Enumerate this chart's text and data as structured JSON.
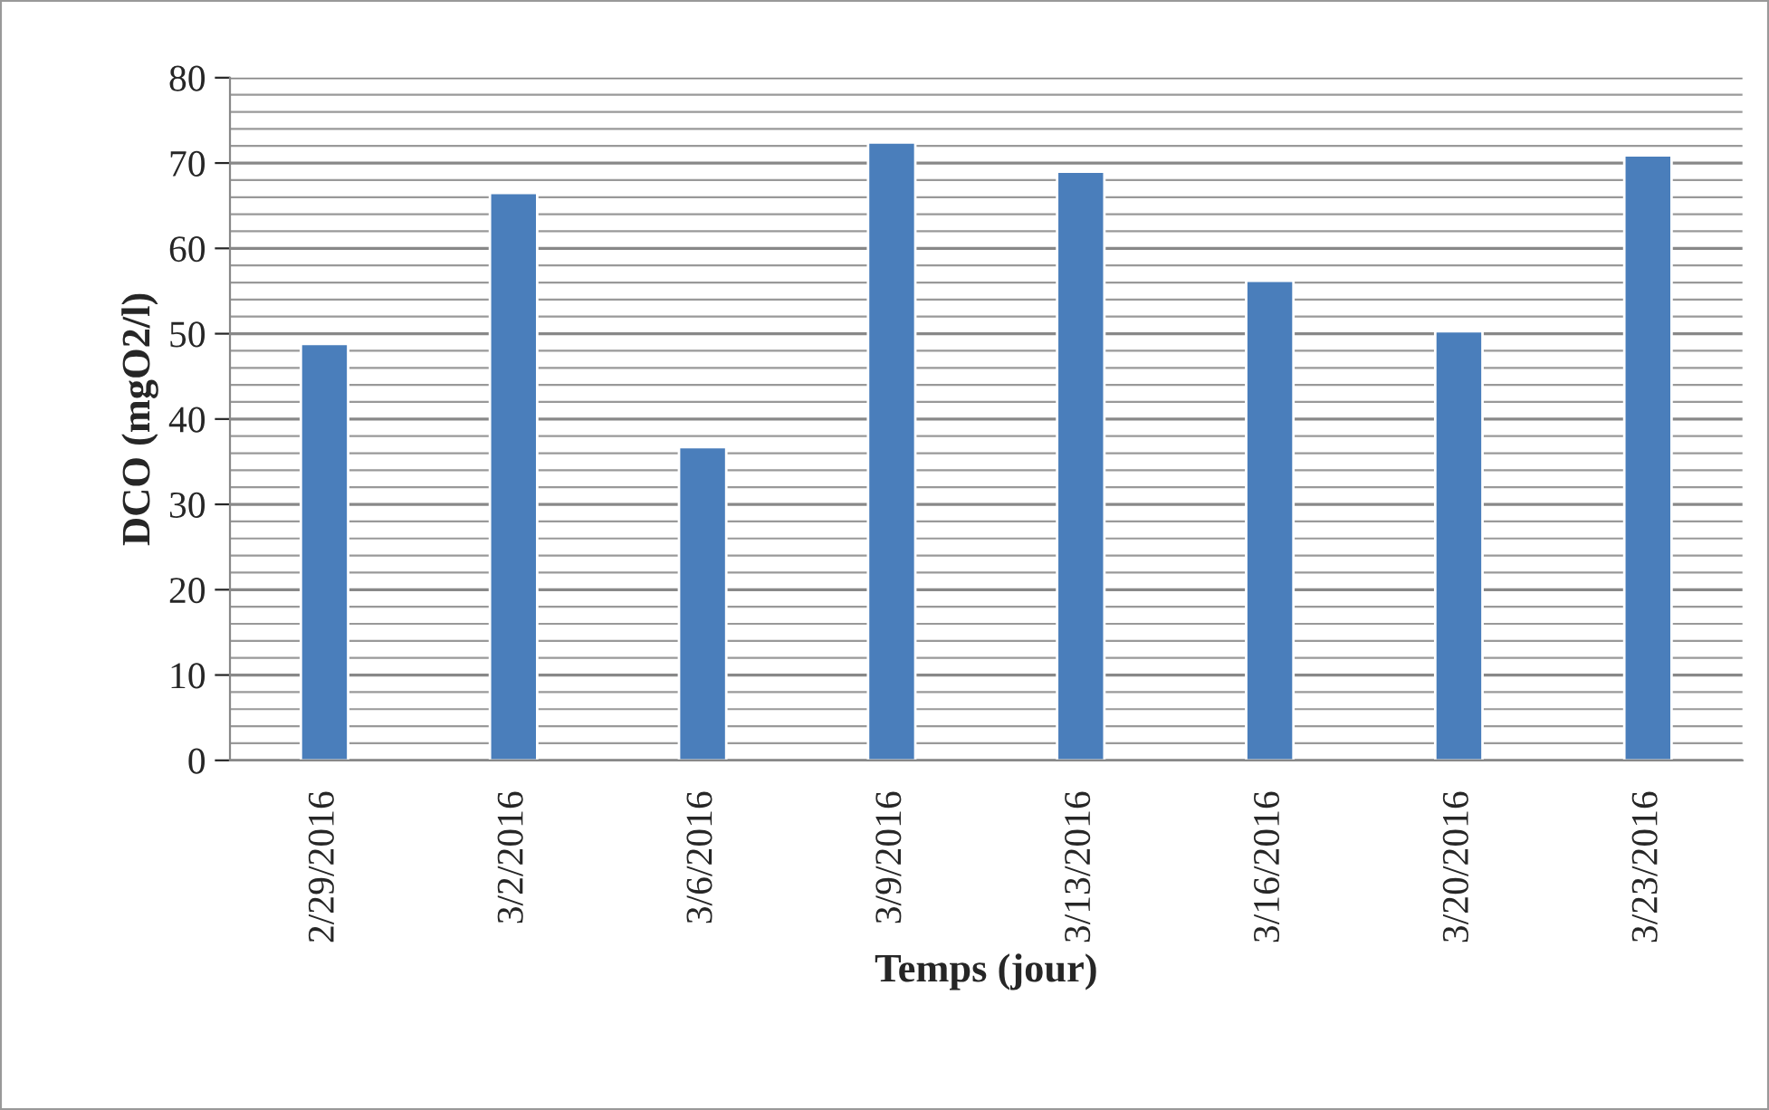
{
  "chart_data": {
    "type": "bar",
    "xlabel": "Temps (jour)",
    "ylabel": "DCO (mgO2/l)",
    "categories": [
      "2/29/2016",
      "3/2/2016",
      "3/6/2016",
      "3/9/2016",
      "3/13/2016",
      "3/16/2016",
      "3/20/2016",
      "3/23/2016"
    ],
    "values": [
      48.8,
      66.5,
      36.7,
      72.4,
      69.0,
      56.2,
      50.3,
      70.9
    ],
    "color": "#4a7ebb",
    "ylim": [
      0,
      80
    ],
    "yticks": [
      0,
      10,
      20,
      30,
      40,
      50,
      60,
      70,
      80
    ],
    "grid": "y",
    "legend": false
  }
}
